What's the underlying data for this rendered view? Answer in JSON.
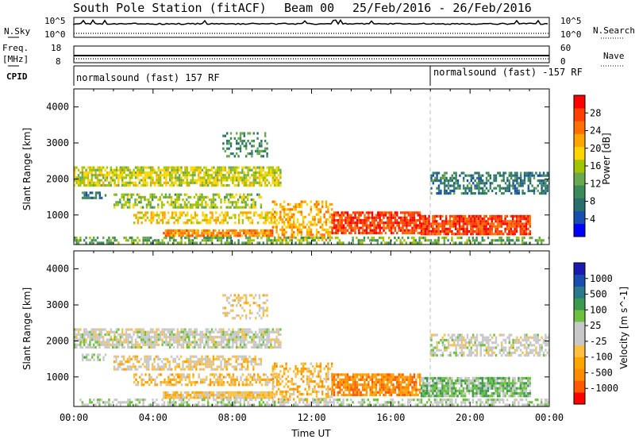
{
  "header": {
    "station": "South Pole Station (fitACF)",
    "beam": "Beam 00",
    "dates": "25/Feb/2016 - 26/Feb/2016"
  },
  "strips": {
    "nsky_label": "N.Sky",
    "nsky_ticks": [
      "10^5",
      "10^0"
    ],
    "nsearch_label": "N.Search",
    "nsearch_ticks": [
      "10^5",
      "10^0"
    ],
    "freq_label_top": "Freq.",
    "freq_label_bottom": "[MHz]",
    "freq_ticks": [
      "18",
      "8"
    ],
    "nave_label": "Nave",
    "nave_ticks": [
      "60",
      "0"
    ],
    "cpid_label": "CPID",
    "cpid_segments": [
      "normalsound (fast) 157 RF",
      "normalsound (fast) -157 RF"
    ]
  },
  "colors": {
    "power_scale": [
      "#0000ff",
      "#1a4db0",
      "#2a6e6e",
      "#3c8a5a",
      "#6aa84f",
      "#a5c400",
      "#ffd400",
      "#ffa500",
      "#ff7000",
      "#ff4000",
      "#ff0000"
    ],
    "velocity_scale": [
      "#ff0000",
      "#ff5a00",
      "#ff8c00",
      "#ffa500",
      "#ffc040",
      "#c8c8c8",
      "#c8c8c8",
      "#6ec040",
      "#3c9a50",
      "#2a7a8a",
      "#1a4db0",
      "#1a1ab0"
    ]
  },
  "chart_data": [
    {
      "type": "heatmap",
      "title": "Power",
      "xlabel": "",
      "ylabel": "Slant Range [km]",
      "yticks": [
        "1000",
        "2000",
        "3000",
        "4000"
      ],
      "ylim": [
        180,
        4500
      ],
      "xlim": [
        0,
        24
      ],
      "colorbar": {
        "label": "Power [dB]",
        "ticks": [
          "4",
          "8",
          "12",
          "16",
          "20",
          "24",
          "28"
        ],
        "range": [
          0,
          30
        ]
      },
      "regions": [
        {
          "t0": 0.0,
          "t1": 10.4,
          "r0": 1850,
          "r1": 2350,
          "value": 16,
          "density": 0.75
        },
        {
          "t0": 0.4,
          "t1": 1.6,
          "r0": 1450,
          "r1": 1650,
          "value": 8,
          "density": 0.6
        },
        {
          "t0": 2.0,
          "t1": 9.5,
          "r0": 1200,
          "r1": 1600,
          "value": 14,
          "density": 0.55
        },
        {
          "t0": 3.0,
          "t1": 10.4,
          "r0": 750,
          "r1": 1100,
          "value": 18,
          "density": 0.55
        },
        {
          "t0": 4.5,
          "t1": 10.0,
          "r0": 400,
          "r1": 600,
          "value": 22,
          "density": 0.9
        },
        {
          "t0": 7.5,
          "t1": 9.8,
          "r0": 2600,
          "r1": 3300,
          "value": 10,
          "density": 0.35
        },
        {
          "t0": 10.0,
          "t1": 13.0,
          "r0": 300,
          "r1": 1400,
          "value": 20,
          "density": 0.45
        },
        {
          "t0": 13.0,
          "t1": 17.5,
          "r0": 500,
          "r1": 1100,
          "value": 26,
          "density": 0.8
        },
        {
          "t0": 17.5,
          "t1": 23.0,
          "r0": 500,
          "r1": 1000,
          "value": 26,
          "density": 0.85
        },
        {
          "t0": 18.0,
          "t1": 24.0,
          "r0": 1600,
          "r1": 2200,
          "value": 8,
          "density": 0.55
        },
        {
          "t0": 0.0,
          "t1": 24.0,
          "r0": 200,
          "r1": 400,
          "value": 12,
          "density": 0.5
        }
      ]
    },
    {
      "type": "heatmap",
      "title": "Velocity",
      "xlabel": "Time UT",
      "ylabel": "Slant Range [km]",
      "xticks": [
        "00:00",
        "04:00",
        "08:00",
        "12:00",
        "16:00",
        "20:00",
        "00:00"
      ],
      "yticks": [
        "1000",
        "2000",
        "3000",
        "4000"
      ],
      "ylim": [
        180,
        4500
      ],
      "xlim": [
        0,
        24
      ],
      "colorbar": {
        "label": "Velocity [m s^-1]",
        "ticks": [
          "1000",
          "500",
          "100",
          "25",
          "-25",
          "-100",
          "-500",
          "-1000"
        ],
        "range": [
          -1200,
          1200
        ]
      },
      "regions": [
        {
          "t0": 0.0,
          "t1": 10.4,
          "r0": 1850,
          "r1": 2350,
          "value": 0,
          "density": 0.75
        },
        {
          "t0": 0.4,
          "t1": 1.6,
          "r0": 1450,
          "r1": 1650,
          "value": 150,
          "density": 0.6
        },
        {
          "t0": 2.0,
          "t1": 9.5,
          "r0": 1200,
          "r1": 1600,
          "value": -200,
          "density": 0.55
        },
        {
          "t0": 3.0,
          "t1": 10.4,
          "r0": 750,
          "r1": 1100,
          "value": -350,
          "density": 0.55
        },
        {
          "t0": 4.5,
          "t1": 10.0,
          "r0": 400,
          "r1": 600,
          "value": -300,
          "density": 0.9
        },
        {
          "t0": 7.5,
          "t1": 9.8,
          "r0": 2600,
          "r1": 3300,
          "value": -150,
          "density": 0.35
        },
        {
          "t0": 10.0,
          "t1": 13.0,
          "r0": 300,
          "r1": 1400,
          "value": -400,
          "density": 0.45
        },
        {
          "t0": 13.0,
          "t1": 17.5,
          "r0": 500,
          "r1": 1100,
          "value": -700,
          "density": 0.8
        },
        {
          "t0": 17.5,
          "t1": 23.0,
          "r0": 500,
          "r1": 1000,
          "value": 300,
          "density": 0.85
        },
        {
          "t0": 18.0,
          "t1": 24.0,
          "r0": 1600,
          "r1": 2200,
          "value": 0,
          "density": 0.55
        },
        {
          "t0": 0.0,
          "t1": 24.0,
          "r0": 200,
          "r1": 400,
          "value": 100,
          "density": 0.5
        }
      ]
    }
  ]
}
